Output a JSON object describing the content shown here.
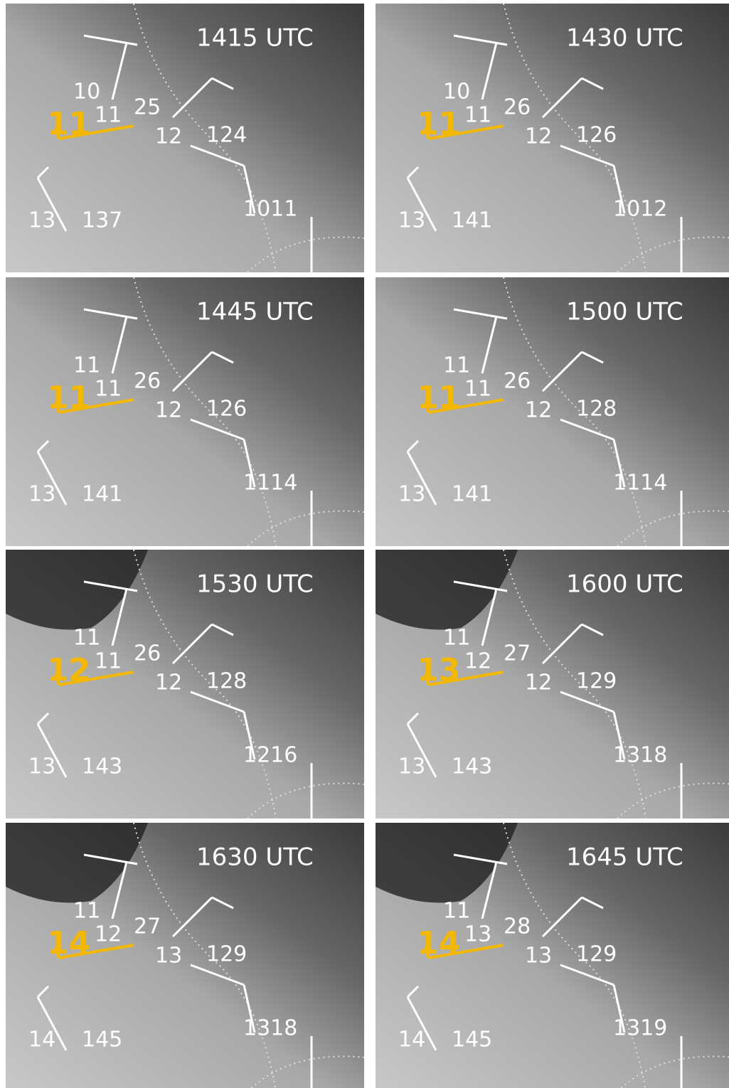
{
  "panels": [
    {
      "time": "1415 UTC",
      "orange": "11",
      "labels": [
        "10",
        "11",
        "25",
        "12",
        "124",
        "13",
        "137",
        "1011"
      ]
    },
    {
      "time": "1430 UTC",
      "orange": "11",
      "labels": [
        "10",
        "11",
        "26",
        "12",
        "126",
        "13",
        "141",
        "1012"
      ]
    },
    {
      "time": "1445 UTC",
      "orange": "11",
      "labels": [
        "11",
        "11",
        "26",
        "12",
        "126",
        "13",
        "141",
        "1114"
      ]
    },
    {
      "time": "1500 UTC",
      "orange": "11",
      "labels": [
        "11",
        "11",
        "26",
        "12",
        "128",
        "13",
        "141",
        "1114"
      ]
    },
    {
      "time": "1530 UTC",
      "orange": "12",
      "labels": [
        "11",
        "11",
        "26",
        "12",
        "128",
        "13",
        "143",
        "1216"
      ]
    },
    {
      "time": "1600 UTC",
      "orange": "13",
      "labels": [
        "11",
        "12",
        "27",
        "12",
        "129",
        "13",
        "143",
        "1318"
      ]
    },
    {
      "time": "1630 UTC",
      "orange": "14",
      "labels": [
        "11",
        "12",
        "27",
        "13",
        "129",
        "14",
        "145",
        "1318"
      ]
    },
    {
      "time": "1645 UTC",
      "orange": "14",
      "labels": [
        "11",
        "13",
        "28",
        "13",
        "129",
        "14",
        "145",
        "1319"
      ]
    }
  ]
}
